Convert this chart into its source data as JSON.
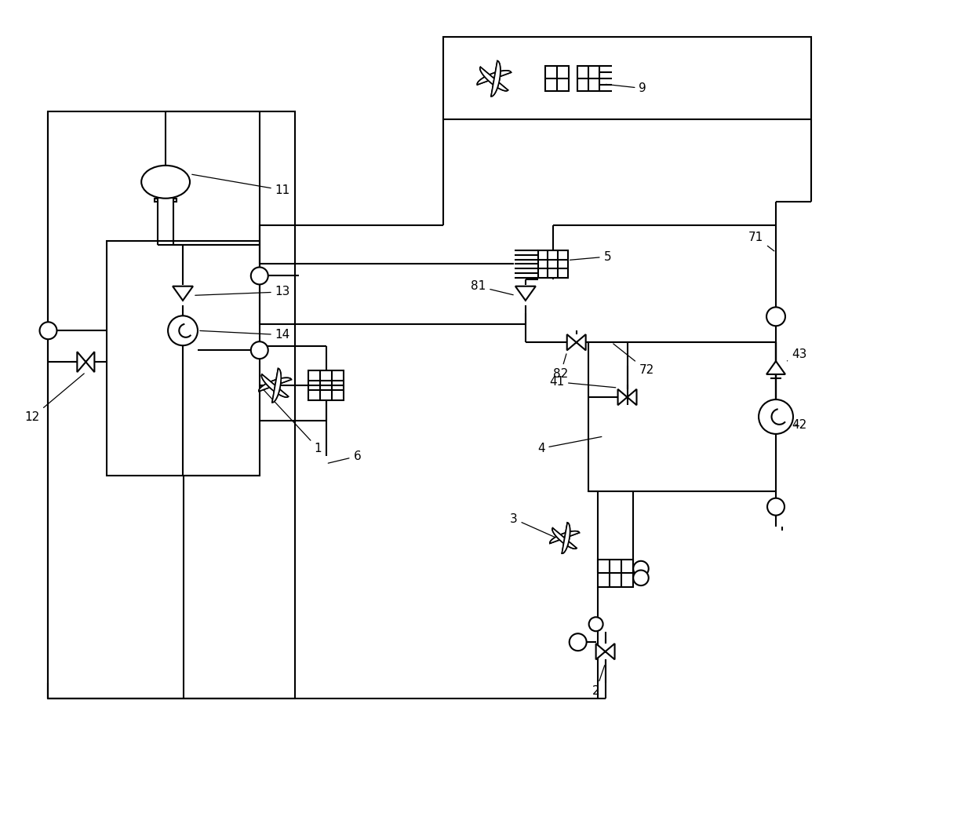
{
  "bg": "#ffffff",
  "lc": "#000000",
  "lw": 1.5,
  "fw": 12.39,
  "fh": 10.41,
  "annotation_fs": 11
}
